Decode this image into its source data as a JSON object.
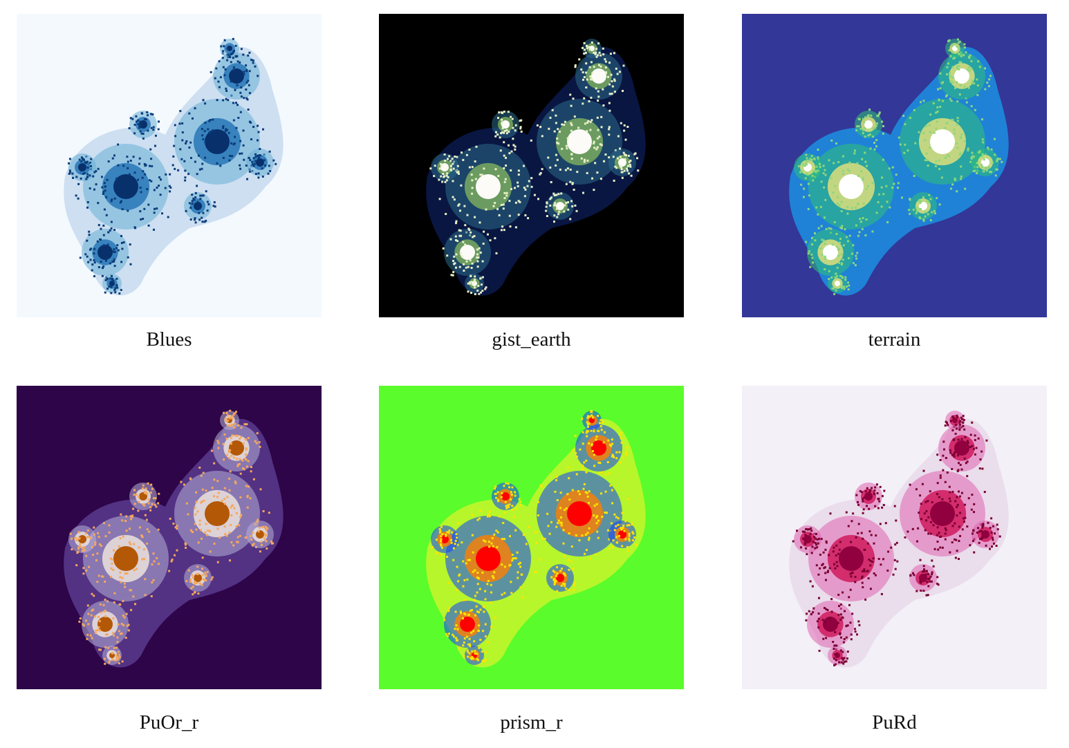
{
  "panels": [
    {
      "label": "Blues",
      "colormap": "Blues",
      "colors": {
        "background": "#f4f9fe",
        "halo": "#c6dbef",
        "mid": "#6aaed6",
        "dense": "#2171b5",
        "core": "#08306b",
        "speck": "#0b3d7a"
      }
    },
    {
      "label": "gist_earth",
      "colormap": "gist_earth",
      "colors": {
        "background": "#000000",
        "halo": "#0b1a4e",
        "mid": "#2c6b8a",
        "dense": "#7fb15e",
        "core": "#fdfbf7",
        "speck": "#e8f0c8"
      }
    },
    {
      "label": "terrain",
      "colormap": "terrain",
      "colors": {
        "background": "#333797",
        "halo": "#1c8fe0",
        "mid": "#30c178",
        "dense": "#e8e279",
        "core": "#ffffff",
        "speck": "#8ed67c"
      }
    },
    {
      "label": "PuOr_r",
      "colormap": "PuOr_r",
      "colors": {
        "background": "#2d0548",
        "halo": "#5a3a8e",
        "mid": "#b6b0d8",
        "dense": "#f2e8de",
        "core": "#b35806",
        "speck": "#f5a85c"
      }
    },
    {
      "label": "prism_r",
      "colormap": "prism_r",
      "colors": {
        "background": "#5bfc2b",
        "halo": "#c8f52a",
        "mid": "#1240ff",
        "dense": "#ff7f00",
        "core": "#ff0000",
        "speck": "#ffe500"
      }
    },
    {
      "label": "PuRd",
      "colormap": "PuRd",
      "colors": {
        "background": "#f3f0f7",
        "halo": "#e7d9ea",
        "mid": "#df65b0",
        "dense": "#ce1256",
        "core": "#91003f",
        "speck": "#7a0030"
      }
    }
  ]
}
